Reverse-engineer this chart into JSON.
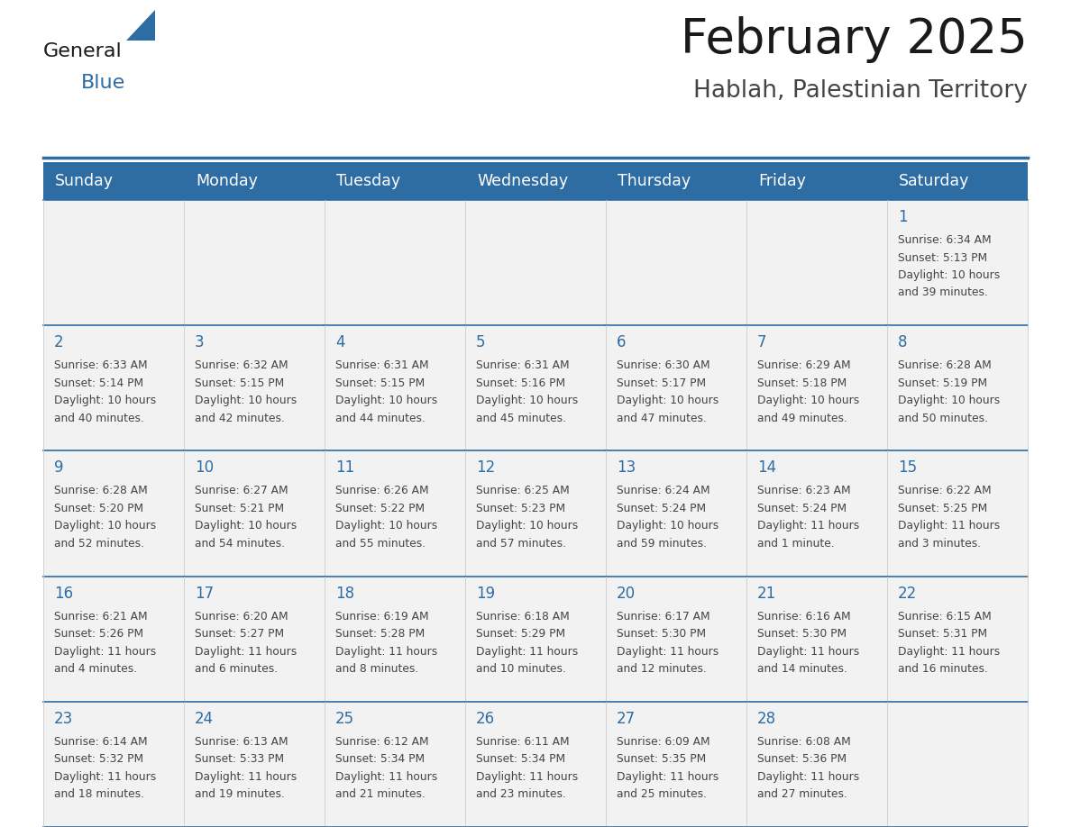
{
  "title": "February 2025",
  "subtitle": "Hablah, Palestinian Territory",
  "header_bg_color": "#2E6DA4",
  "header_text_color": "#FFFFFF",
  "border_color": "#2E6DA4",
  "title_color": "#1a1a1a",
  "subtitle_color": "#444444",
  "day_number_color": "#2E6DA4",
  "cell_text_color": "#444444",
  "cell_bg_color": "#F2F2F2",
  "days_of_week": [
    "Sunday",
    "Monday",
    "Tuesday",
    "Wednesday",
    "Thursday",
    "Friday",
    "Saturday"
  ],
  "calendar": [
    [
      null,
      null,
      null,
      null,
      null,
      null,
      1
    ],
    [
      2,
      3,
      4,
      5,
      6,
      7,
      8
    ],
    [
      9,
      10,
      11,
      12,
      13,
      14,
      15
    ],
    [
      16,
      17,
      18,
      19,
      20,
      21,
      22
    ],
    [
      23,
      24,
      25,
      26,
      27,
      28,
      null
    ]
  ],
  "sun_times": {
    "1": {
      "sunrise": "6:34 AM",
      "sunset": "5:13 PM",
      "daylight": "10 hours",
      "daylight2": "and 39 minutes."
    },
    "2": {
      "sunrise": "6:33 AM",
      "sunset": "5:14 PM",
      "daylight": "10 hours",
      "daylight2": "and 40 minutes."
    },
    "3": {
      "sunrise": "6:32 AM",
      "sunset": "5:15 PM",
      "daylight": "10 hours",
      "daylight2": "and 42 minutes."
    },
    "4": {
      "sunrise": "6:31 AM",
      "sunset": "5:15 PM",
      "daylight": "10 hours",
      "daylight2": "and 44 minutes."
    },
    "5": {
      "sunrise": "6:31 AM",
      "sunset": "5:16 PM",
      "daylight": "10 hours",
      "daylight2": "and 45 minutes."
    },
    "6": {
      "sunrise": "6:30 AM",
      "sunset": "5:17 PM",
      "daylight": "10 hours",
      "daylight2": "and 47 minutes."
    },
    "7": {
      "sunrise": "6:29 AM",
      "sunset": "5:18 PM",
      "daylight": "10 hours",
      "daylight2": "and 49 minutes."
    },
    "8": {
      "sunrise": "6:28 AM",
      "sunset": "5:19 PM",
      "daylight": "10 hours",
      "daylight2": "and 50 minutes."
    },
    "9": {
      "sunrise": "6:28 AM",
      "sunset": "5:20 PM",
      "daylight": "10 hours",
      "daylight2": "and 52 minutes."
    },
    "10": {
      "sunrise": "6:27 AM",
      "sunset": "5:21 PM",
      "daylight": "10 hours",
      "daylight2": "and 54 minutes."
    },
    "11": {
      "sunrise": "6:26 AM",
      "sunset": "5:22 PM",
      "daylight": "10 hours",
      "daylight2": "and 55 minutes."
    },
    "12": {
      "sunrise": "6:25 AM",
      "sunset": "5:23 PM",
      "daylight": "10 hours",
      "daylight2": "and 57 minutes."
    },
    "13": {
      "sunrise": "6:24 AM",
      "sunset": "5:24 PM",
      "daylight": "10 hours",
      "daylight2": "and 59 minutes."
    },
    "14": {
      "sunrise": "6:23 AM",
      "sunset": "5:24 PM",
      "daylight": "11 hours",
      "daylight2": "and 1 minute."
    },
    "15": {
      "sunrise": "6:22 AM",
      "sunset": "5:25 PM",
      "daylight": "11 hours",
      "daylight2": "and 3 minutes."
    },
    "16": {
      "sunrise": "6:21 AM",
      "sunset": "5:26 PM",
      "daylight": "11 hours",
      "daylight2": "and 4 minutes."
    },
    "17": {
      "sunrise": "6:20 AM",
      "sunset": "5:27 PM",
      "daylight": "11 hours",
      "daylight2": "and 6 minutes."
    },
    "18": {
      "sunrise": "6:19 AM",
      "sunset": "5:28 PM",
      "daylight": "11 hours",
      "daylight2": "and 8 minutes."
    },
    "19": {
      "sunrise": "6:18 AM",
      "sunset": "5:29 PM",
      "daylight": "11 hours",
      "daylight2": "and 10 minutes."
    },
    "20": {
      "sunrise": "6:17 AM",
      "sunset": "5:30 PM",
      "daylight": "11 hours",
      "daylight2": "and 12 minutes."
    },
    "21": {
      "sunrise": "6:16 AM",
      "sunset": "5:30 PM",
      "daylight": "11 hours",
      "daylight2": "and 14 minutes."
    },
    "22": {
      "sunrise": "6:15 AM",
      "sunset": "5:31 PM",
      "daylight": "11 hours",
      "daylight2": "and 16 minutes."
    },
    "23": {
      "sunrise": "6:14 AM",
      "sunset": "5:32 PM",
      "daylight": "11 hours",
      "daylight2": "and 18 minutes."
    },
    "24": {
      "sunrise": "6:13 AM",
      "sunset": "5:33 PM",
      "daylight": "11 hours",
      "daylight2": "and 19 minutes."
    },
    "25": {
      "sunrise": "6:12 AM",
      "sunset": "5:34 PM",
      "daylight": "11 hours",
      "daylight2": "and 21 minutes."
    },
    "26": {
      "sunrise": "6:11 AM",
      "sunset": "5:34 PM",
      "daylight": "11 hours",
      "daylight2": "and 23 minutes."
    },
    "27": {
      "sunrise": "6:09 AM",
      "sunset": "5:35 PM",
      "daylight": "11 hours",
      "daylight2": "and 25 minutes."
    },
    "28": {
      "sunrise": "6:08 AM",
      "sunset": "5:36 PM",
      "daylight": "11 hours",
      "daylight2": "and 27 minutes."
    }
  },
  "figsize": [
    11.88,
    9.18
  ],
  "dpi": 100
}
